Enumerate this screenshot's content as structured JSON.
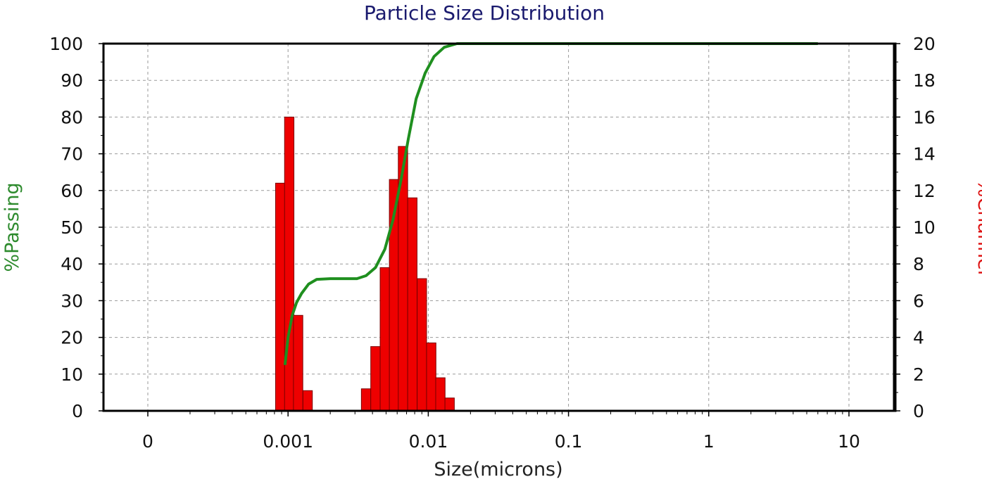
{
  "chart_data": {
    "type": "bar",
    "title": "Particle Size Distribution",
    "xlabel": "Size(microns)",
    "ylabel_left": "%Passing",
    "ylabel_right": "%Channel",
    "x_scale": "log",
    "x_tick_labels": [
      "0",
      "0.001",
      "0.01",
      "0.1",
      "1",
      "10"
    ],
    "x_tick_values": [
      0.0001,
      0.001,
      0.01,
      0.1,
      1,
      10
    ],
    "y_left_ticks": [
      "0",
      "10",
      "20",
      "30",
      "40",
      "50",
      "60",
      "70",
      "80",
      "90",
      "100"
    ],
    "y_right_ticks": [
      "0",
      "2",
      "4",
      "6",
      "8",
      "10",
      "12",
      "14",
      "16",
      "18",
      "20"
    ],
    "ylim_left": [
      0,
      100
    ],
    "ylim_right": [
      0,
      20
    ],
    "grid": true,
    "colors": {
      "bars": "#ee0000",
      "bar_edge": "#7a0000",
      "line": "#1f8f1f",
      "title": "#1a1a6e",
      "left_label": "#2e8b2e",
      "right_label": "#dd1111"
    },
    "series": [
      {
        "name": "%Channel",
        "axis": "right",
        "kind": "bar",
        "points": [
          {
            "x": 0.00088,
            "y": 12.4
          },
          {
            "x": 0.00102,
            "y": 16.0
          },
          {
            "x": 0.00118,
            "y": 5.2
          },
          {
            "x": 0.00138,
            "y": 1.1
          },
          {
            "x": 0.0036,
            "y": 1.2
          },
          {
            "x": 0.0042,
            "y": 3.5
          },
          {
            "x": 0.0049,
            "y": 7.8
          },
          {
            "x": 0.0057,
            "y": 12.6
          },
          {
            "x": 0.0066,
            "y": 14.4
          },
          {
            "x": 0.0077,
            "y": 11.6
          },
          {
            "x": 0.009,
            "y": 7.2
          },
          {
            "x": 0.0105,
            "y": 3.7
          },
          {
            "x": 0.0122,
            "y": 1.8
          },
          {
            "x": 0.0142,
            "y": 0.7
          }
        ]
      },
      {
        "name": "%Passing",
        "axis": "left",
        "kind": "line",
        "points": [
          {
            "x": 0.00095,
            "y": 12.5
          },
          {
            "x": 0.001,
            "y": 20
          },
          {
            "x": 0.00107,
            "y": 26
          },
          {
            "x": 0.00115,
            "y": 29.5
          },
          {
            "x": 0.00125,
            "y": 32
          },
          {
            "x": 0.0014,
            "y": 34.5
          },
          {
            "x": 0.0016,
            "y": 35.8
          },
          {
            "x": 0.002,
            "y": 36
          },
          {
            "x": 0.0025,
            "y": 36
          },
          {
            "x": 0.0031,
            "y": 36
          },
          {
            "x": 0.0036,
            "y": 36.8
          },
          {
            "x": 0.0042,
            "y": 39
          },
          {
            "x": 0.0049,
            "y": 44
          },
          {
            "x": 0.0056,
            "y": 52
          },
          {
            "x": 0.0064,
            "y": 63
          },
          {
            "x": 0.0072,
            "y": 74
          },
          {
            "x": 0.0082,
            "y": 85
          },
          {
            "x": 0.0095,
            "y": 92
          },
          {
            "x": 0.011,
            "y": 96.5
          },
          {
            "x": 0.013,
            "y": 99
          },
          {
            "x": 0.016,
            "y": 100
          },
          {
            "x": 0.025,
            "y": 100
          },
          {
            "x": 0.1,
            "y": 100
          },
          {
            "x": 1,
            "y": 100
          },
          {
            "x": 6,
            "y": 100
          }
        ]
      }
    ]
  }
}
